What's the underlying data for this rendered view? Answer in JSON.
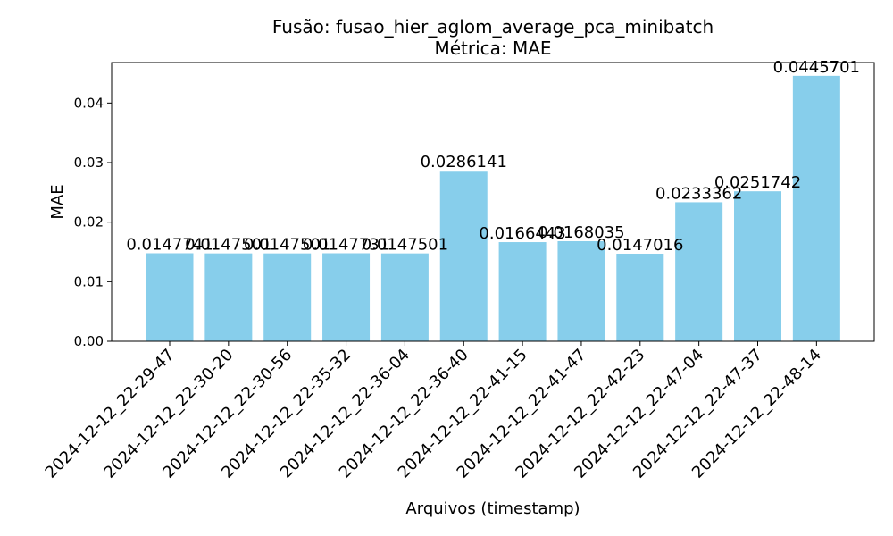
{
  "chart_data": {
    "type": "bar",
    "title": "Fusão: fusao_hier_aglom_average_pca_minibatch",
    "subtitle": "Métrica: MAE",
    "xlabel": "Arquivos (timestamp)",
    "ylabel": "MAE",
    "ylim": [
      0,
      0.0468
    ],
    "yticks": [
      "0.00",
      "0.01",
      "0.02",
      "0.03",
      "0.04"
    ],
    "ytick_values": [
      0.0,
      0.01,
      0.02,
      0.03,
      0.04
    ],
    "categories": [
      "2024-12-12_22-29-47",
      "2024-12-12_22-30-20",
      "2024-12-12_22-30-56",
      "2024-12-12_22-35-32",
      "2024-12-12_22-36-04",
      "2024-12-12_22-36-40",
      "2024-12-12_22-41-15",
      "2024-12-12_22-41-47",
      "2024-12-12_22-42-23",
      "2024-12-12_22-47-04",
      "2024-12-12_22-47-37",
      "2024-12-12_22-48-14"
    ],
    "values": [
      0.0147741,
      0.0147501,
      0.0147501,
      0.0147731,
      0.0147501,
      0.0286141,
      0.0166443,
      0.0168035,
      0.0147016,
      0.0233362,
      0.0251742,
      0.0445701
    ],
    "value_labels": [
      "0.0147741",
      "0.0147501",
      "0.0147501",
      "0.0147731",
      "0.0147501",
      "0.0286141",
      "0.0166443",
      "0.0168035",
      "0.0147016",
      "0.0233362",
      "0.0251742",
      "0.0445701"
    ],
    "bar_color": "#87ceeb",
    "grid": false,
    "legend": "none"
  }
}
